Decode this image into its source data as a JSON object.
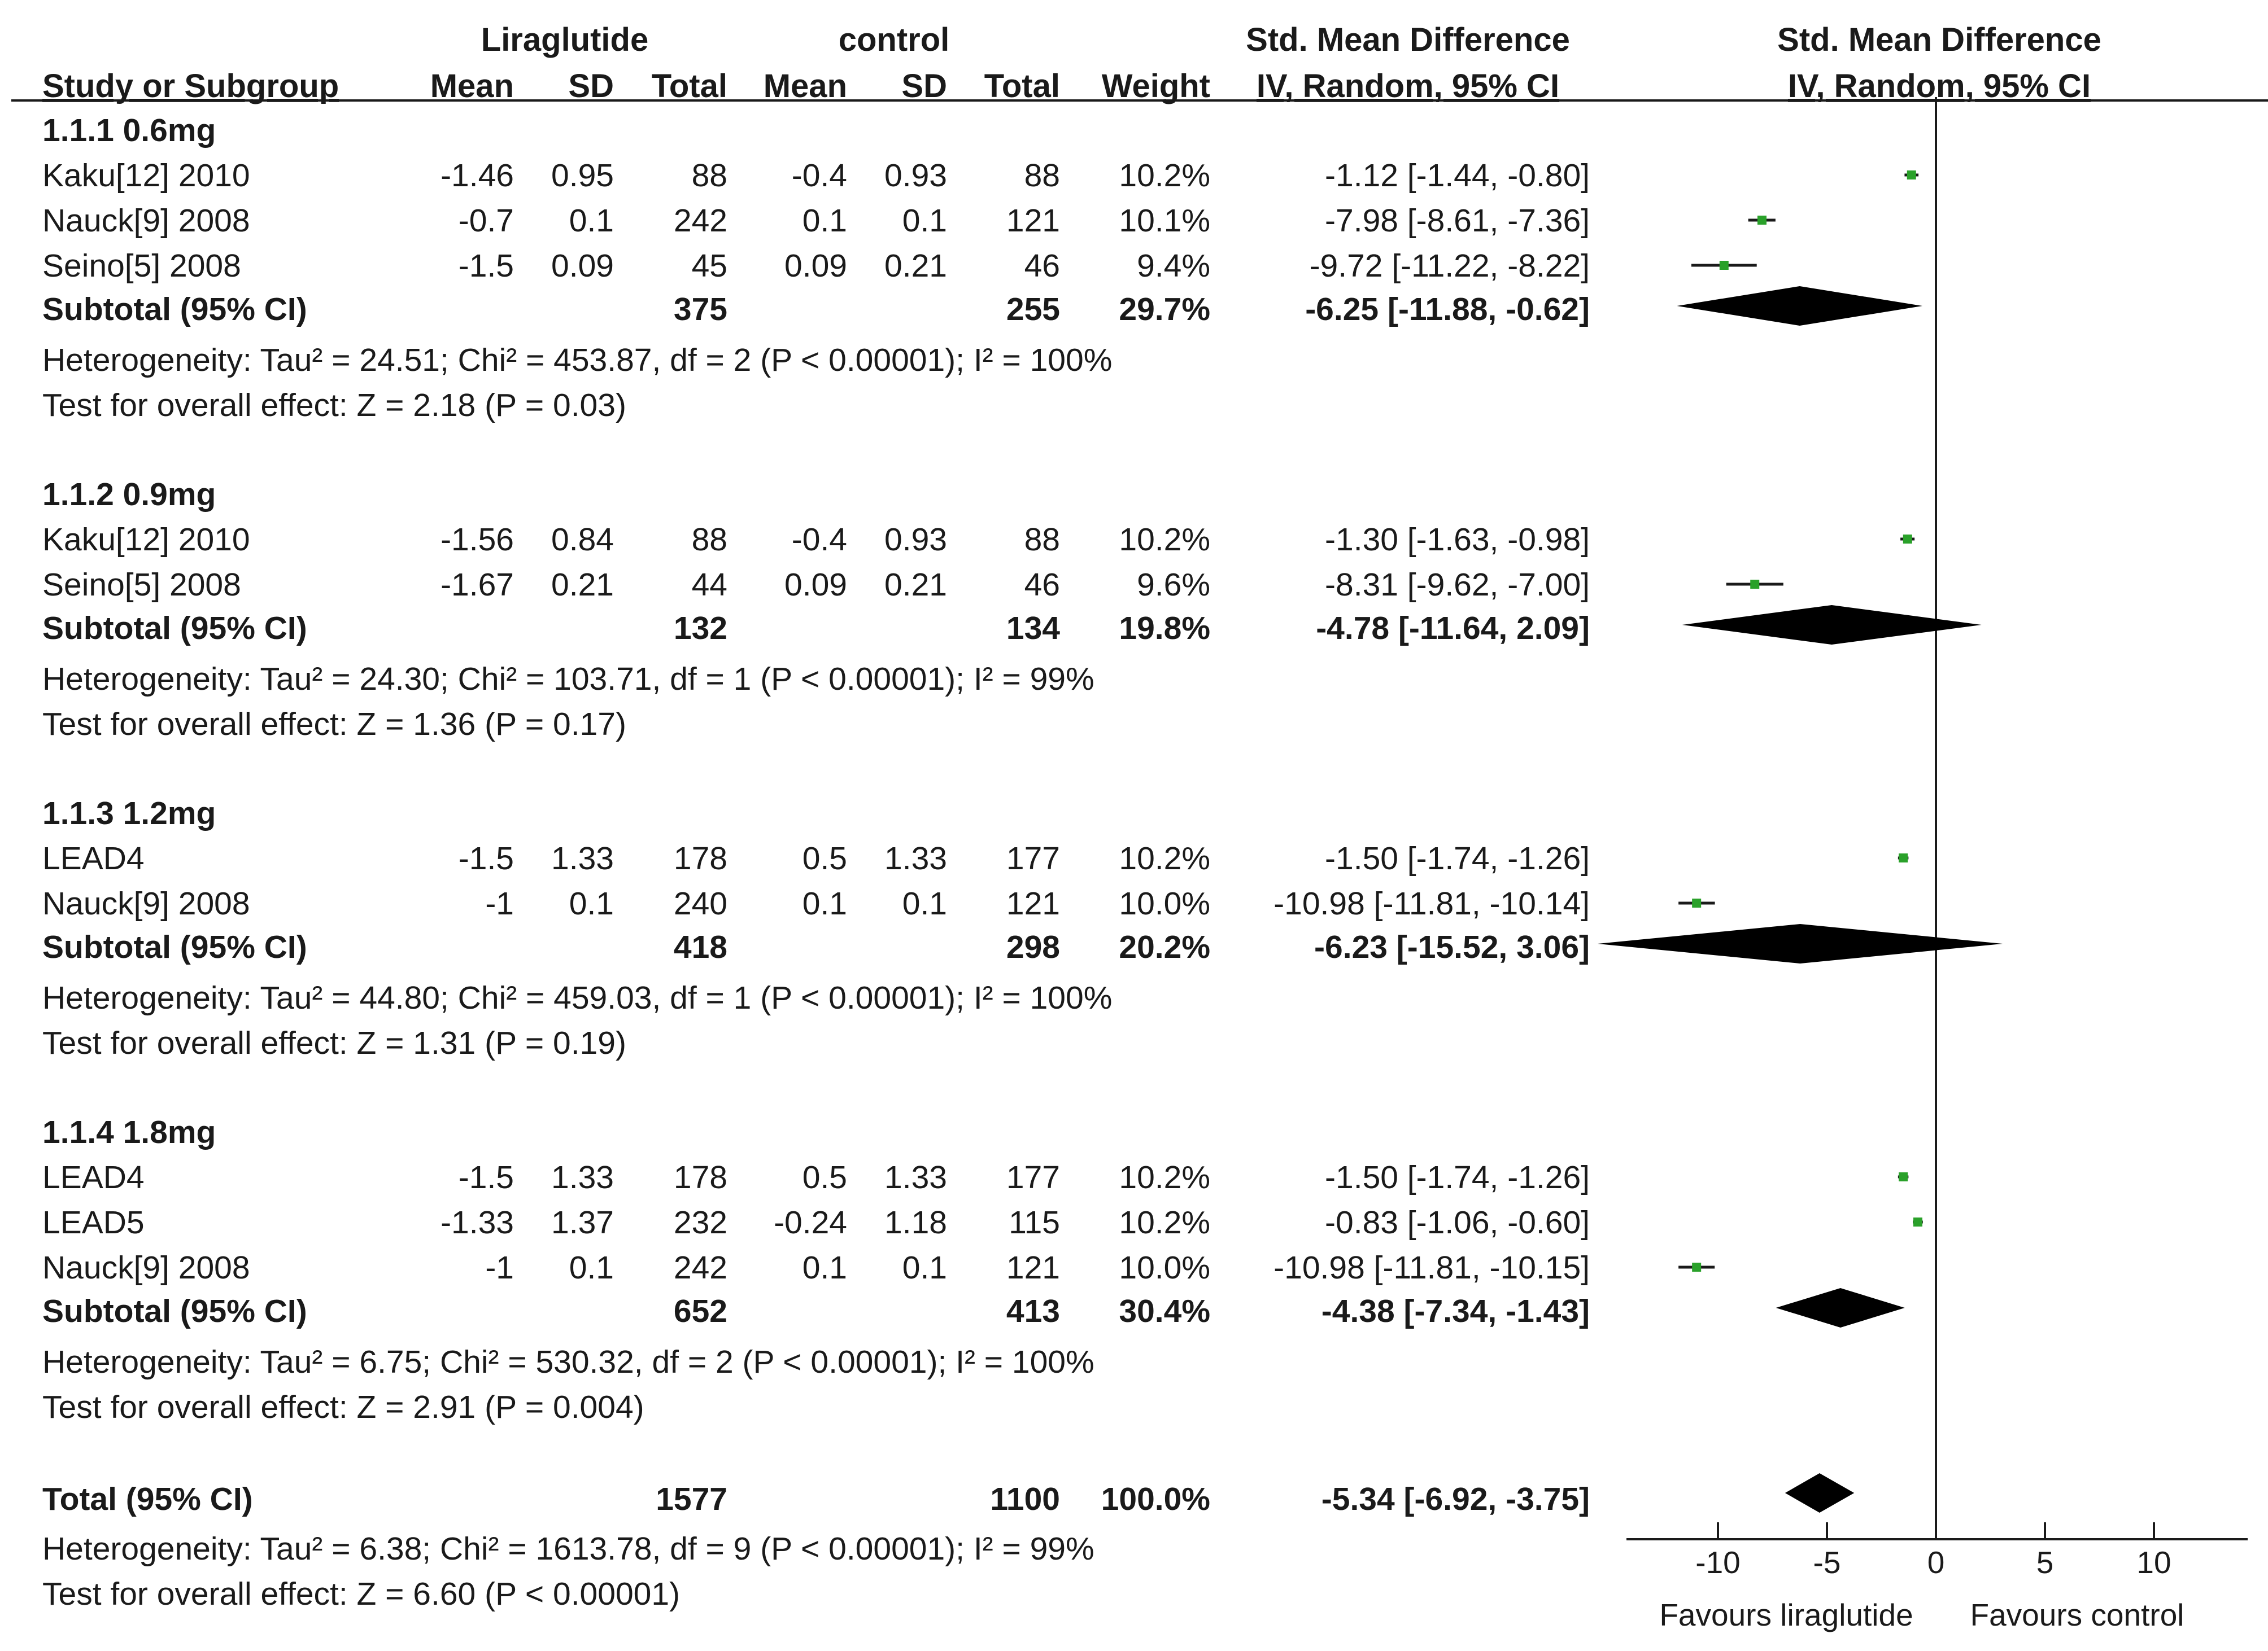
{
  "chart_data": {
    "type": "forest",
    "headers": {
      "group_lira": "Liraglutide",
      "group_control": "control",
      "effect_col": "Std. Mean Difference",
      "effect_method": "IV, Random, 95% CI",
      "plot_title": "Std. Mean Difference",
      "plot_method": "IV, Random, 95% CI",
      "study": "Study or Subgroup",
      "mean": "Mean",
      "sd": "SD",
      "total": "Total",
      "mean2": "Mean",
      "sd2": "SD",
      "total2": "Total",
      "weight": "Weight"
    },
    "subgroups": [
      {
        "title": "1.1.1 0.6mg",
        "studies": [
          {
            "name": "Kaku[12] 2010",
            "m1": "-1.46",
            "sd1": "0.95",
            "n1": "88",
            "m2": "-0.4",
            "sd2": "0.93",
            "n2": "88",
            "weight": "10.2%",
            "ci_text": "-1.12 [-1.44, -0.80]",
            "est": -1.12,
            "lo": -1.44,
            "hi": -0.8
          },
          {
            "name": "Nauck[9] 2008",
            "m1": "-0.7",
            "sd1": "0.1",
            "n1": "242",
            "m2": "0.1",
            "sd2": "0.1",
            "n2": "121",
            "weight": "10.1%",
            "ci_text": "-7.98 [-8.61, -7.36]",
            "est": -7.98,
            "lo": -8.61,
            "hi": -7.36
          },
          {
            "name": "Seino[5] 2008",
            "m1": "-1.5",
            "sd1": "0.09",
            "n1": "45",
            "m2": "0.09",
            "sd2": "0.21",
            "n2": "46",
            "weight": "9.4%",
            "ci_text": "-9.72 [-11.22, -8.22]",
            "est": -9.72,
            "lo": -11.22,
            "hi": -8.22
          }
        ],
        "subtotal": {
          "label": "Subtotal (95% CI)",
          "n1": "375",
          "n2": "255",
          "weight": "29.7%",
          "ci_text": "-6.25 [-11.88, -0.62]",
          "est": -6.25,
          "lo": -11.88,
          "hi": -0.62
        },
        "heterogeneity": "Heterogeneity: Tau² = 24.51; Chi² = 453.87, df = 2 (P < 0.00001); I² = 100%",
        "overall": "Test for overall effect: Z = 2.18 (P = 0.03)"
      },
      {
        "title": "1.1.2 0.9mg",
        "studies": [
          {
            "name": "Kaku[12] 2010",
            "m1": "-1.56",
            "sd1": "0.84",
            "n1": "88",
            "m2": "-0.4",
            "sd2": "0.93",
            "n2": "88",
            "weight": "10.2%",
            "ci_text": "-1.30 [-1.63, -0.98]",
            "est": -1.3,
            "lo": -1.63,
            "hi": -0.98
          },
          {
            "name": "Seino[5] 2008",
            "m1": "-1.67",
            "sd1": "0.21",
            "n1": "44",
            "m2": "0.09",
            "sd2": "0.21",
            "n2": "46",
            "weight": "9.6%",
            "ci_text": "-8.31 [-9.62, -7.00]",
            "est": -8.31,
            "lo": -9.62,
            "hi": -7.0
          }
        ],
        "subtotal": {
          "label": "Subtotal (95% CI)",
          "n1": "132",
          "n2": "134",
          "weight": "19.8%",
          "ci_text": "-4.78 [-11.64, 2.09]",
          "est": -4.78,
          "lo": -11.64,
          "hi": 2.09
        },
        "heterogeneity": "Heterogeneity: Tau² = 24.30; Chi² = 103.71, df = 1 (P < 0.00001); I² = 99%",
        "overall": "Test for overall effect: Z = 1.36 (P = 0.17)"
      },
      {
        "title": "1.1.3 1.2mg",
        "studies": [
          {
            "name": "LEAD4",
            "m1": "-1.5",
            "sd1": "1.33",
            "n1": "178",
            "m2": "0.5",
            "sd2": "1.33",
            "n2": "177",
            "weight": "10.2%",
            "ci_text": "-1.50 [-1.74, -1.26]",
            "est": -1.5,
            "lo": -1.74,
            "hi": -1.26
          },
          {
            "name": "Nauck[9] 2008",
            "m1": "-1",
            "sd1": "0.1",
            "n1": "240",
            "m2": "0.1",
            "sd2": "0.1",
            "n2": "121",
            "weight": "10.0%",
            "ci_text": "-10.98 [-11.81, -10.14]",
            "est": -10.98,
            "lo": -11.81,
            "hi": -10.14
          }
        ],
        "subtotal": {
          "label": "Subtotal (95% CI)",
          "n1": "418",
          "n2": "298",
          "weight": "20.2%",
          "ci_text": "-6.23 [-15.52, 3.06]",
          "est": -6.23,
          "lo": -15.52,
          "hi": 3.06
        },
        "heterogeneity": "Heterogeneity: Tau² = 44.80; Chi² = 459.03, df = 1 (P < 0.00001); I² = 100%",
        "overall": "Test for overall effect: Z = 1.31 (P = 0.19)"
      },
      {
        "title": "1.1.4 1.8mg",
        "studies": [
          {
            "name": "LEAD4",
            "m1": "-1.5",
            "sd1": "1.33",
            "n1": "178",
            "m2": "0.5",
            "sd2": "1.33",
            "n2": "177",
            "weight": "10.2%",
            "ci_text": "-1.50 [-1.74, -1.26]",
            "est": -1.5,
            "lo": -1.74,
            "hi": -1.26
          },
          {
            "name": "LEAD5",
            "m1": "-1.33",
            "sd1": "1.37",
            "n1": "232",
            "m2": "-0.24",
            "sd2": "1.18",
            "n2": "115",
            "weight": "10.2%",
            "ci_text": "-0.83 [-1.06, -0.60]",
            "est": -0.83,
            "lo": -1.06,
            "hi": -0.6
          },
          {
            "name": "Nauck[9] 2008",
            "m1": "-1",
            "sd1": "0.1",
            "n1": "242",
            "m2": "0.1",
            "sd2": "0.1",
            "n2": "121",
            "weight": "10.0%",
            "ci_text": "-10.98 [-11.81, -10.15]",
            "est": -10.98,
            "lo": -11.81,
            "hi": -10.15
          }
        ],
        "subtotal": {
          "label": "Subtotal (95% CI)",
          "n1": "652",
          "n2": "413",
          "weight": "30.4%",
          "ci_text": "-4.38 [-7.34, -1.43]",
          "est": -4.38,
          "lo": -7.34,
          "hi": -1.43
        },
        "heterogeneity": "Heterogeneity: Tau² = 6.75; Chi² = 530.32, df = 2 (P < 0.00001); I² = 100%",
        "overall": "Test for overall effect: Z = 2.91 (P = 0.004)"
      }
    ],
    "total": {
      "label": "Total (95% CI)",
      "n1": "1577",
      "n2": "1100",
      "weight": "100.0%",
      "ci_text": "-5.34 [-6.92, -3.75]",
      "est": -5.34,
      "lo": -6.92,
      "hi": -3.75,
      "heterogeneity": "Heterogeneity: Tau² = 6.38; Chi² = 1613.78, df = 9 (P < 0.00001); I² = 99%",
      "overall": "Test for overall effect: Z = 6.60 (P < 0.00001)"
    },
    "axis": {
      "xlim": [
        -14,
        14
      ],
      "ticks": [
        -10,
        -5,
        0,
        5,
        10
      ],
      "tick_labels": [
        "-10",
        "-5",
        "0",
        "5",
        "10"
      ],
      "favours_left": "Favours liraglutide",
      "favours_right": "Favours control"
    },
    "colors": {
      "marker": "#2aa12a",
      "diamond": "#000000",
      "text": "#1a1a1a"
    }
  }
}
